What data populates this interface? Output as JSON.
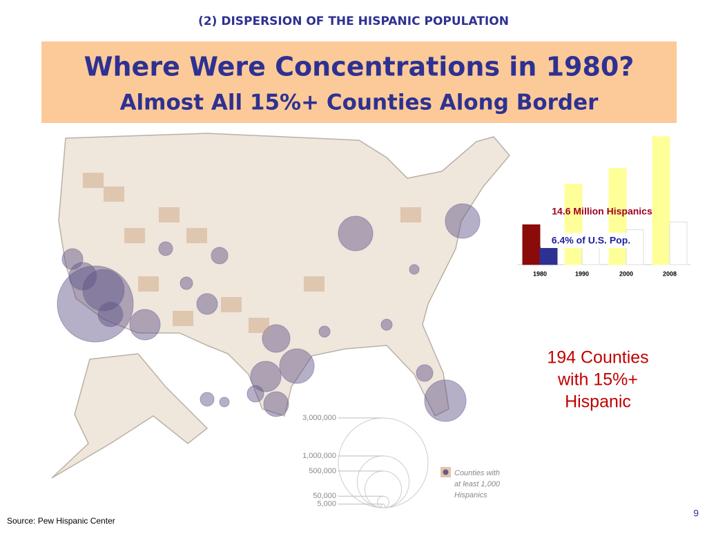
{
  "header": {
    "section": "(2) DISPERSION OF THE HISPANIC POPULATION",
    "title": "Where Were Concentrations in 1980?",
    "subtitle": "Almost All 15%+ Counties Along Border"
  },
  "chart_data": {
    "type": "bar",
    "categories": [
      "1980",
      "1990",
      "2000",
      "2008"
    ],
    "series": [
      {
        "colors": [
          "#8b0a0a",
          "#ffff99",
          "#ffff99",
          "#ffff99"
        ],
        "values": [
          14.6,
          29.5,
          35.3,
          46.9
        ],
        "value_labels": [
          "14.6 Million Hispanics",
          null,
          null,
          null
        ]
      },
      {
        "colors": [
          "#2e3192",
          "#ffffff",
          "#ffffff",
          "#ffffff"
        ],
        "values": [
          6.4,
          9.0,
          12.8,
          15.6
        ],
        "value_labels": [
          "6.4% of U.S. Pop.",
          null,
          null,
          null
        ]
      }
    ]
  },
  "callout": [
    "194 Counties",
    "with 15%+",
    "Hispanic"
  ],
  "map_legend": {
    "sizes": [
      {
        "value": 3000000,
        "label": "3,000,000"
      },
      {
        "value": 1000000,
        "label": "1,000,000"
      },
      {
        "value": 500000,
        "label": "500,000"
      },
      {
        "value": 50000,
        "label": "50,000"
      },
      {
        "value": 5000,
        "label": "5,000"
      }
    ],
    "label": [
      "Counties with",
      "at least 1,000",
      "Hispanics"
    ]
  },
  "footer": {
    "source": "Source: Pew Hispanic Center",
    "page": "9"
  }
}
